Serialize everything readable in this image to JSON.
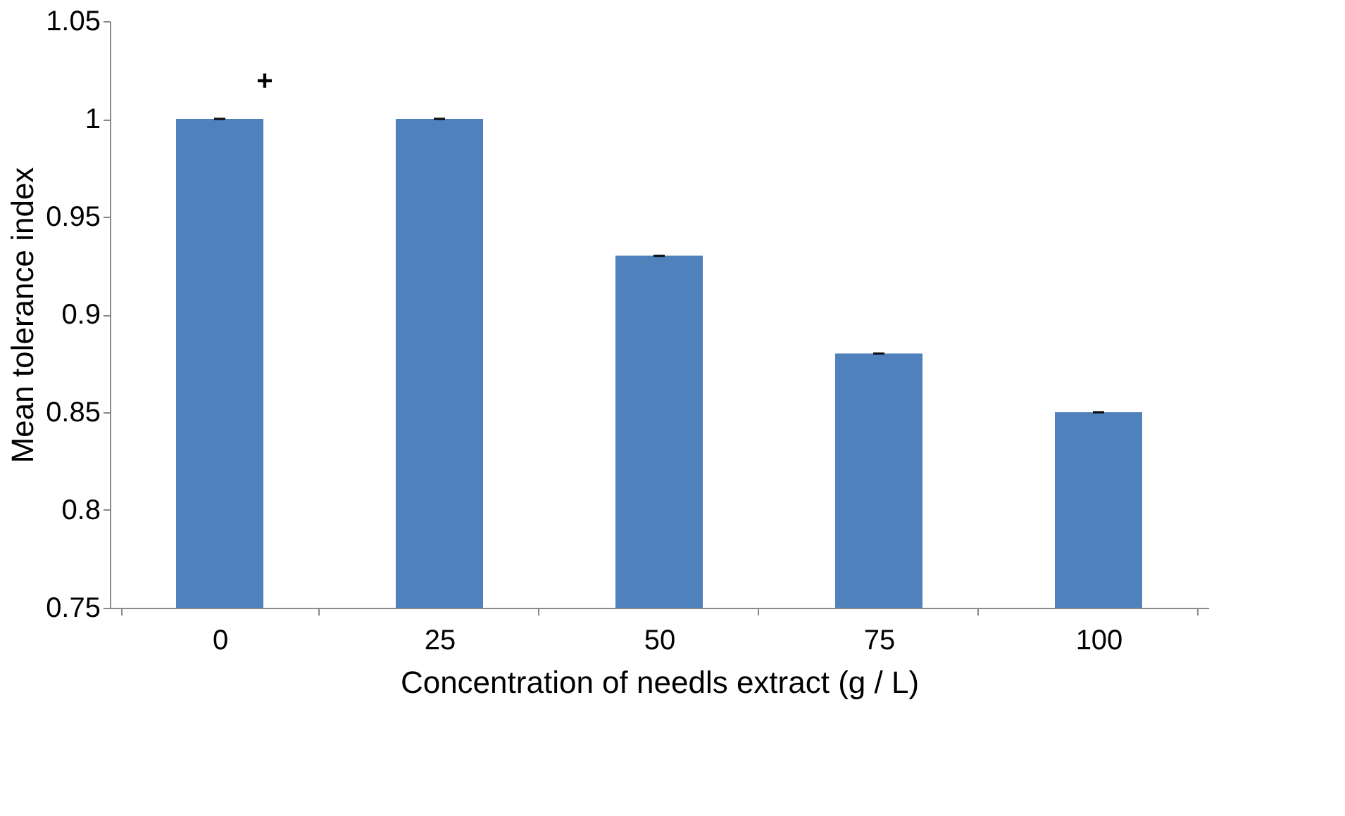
{
  "chart_data": {
    "type": "bar",
    "xlabel": "Concentration of needls extract (g / L)",
    "ylabel": "Mean tolerance index",
    "categories": [
      "0",
      "25",
      "50",
      "75",
      "100"
    ],
    "values": [
      1.0,
      1.0,
      0.93,
      0.88,
      0.85
    ],
    "color": "#4f81bd",
    "errors": [
      0,
      0,
      0,
      0,
      0
    ],
    "ylim": [
      0.75,
      1.05
    ],
    "yticks": [
      0.75,
      0.8,
      0.85,
      0.9,
      0.95,
      1,
      1.05
    ],
    "grid": false,
    "annotations": [
      "+"
    ]
  }
}
